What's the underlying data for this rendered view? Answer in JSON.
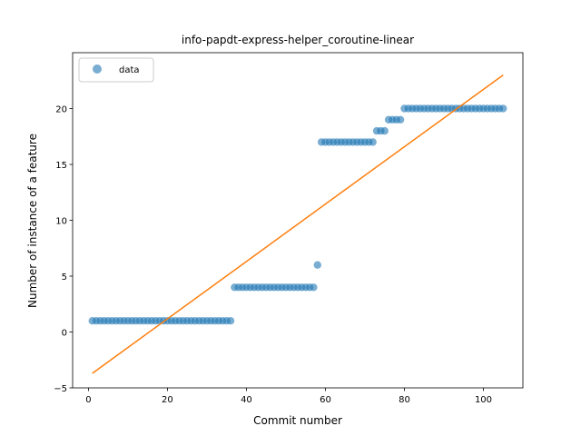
{
  "chart_data": {
    "type": "scatter",
    "title": "info-papdt-express-helper_coroutine-linear",
    "xlabel": "Commit number",
    "ylabel": "Number of instance of a feature",
    "xlim": [
      -4,
      110
    ],
    "ylim": [
      -5,
      25
    ],
    "xticks": [
      0,
      20,
      40,
      60,
      80,
      100
    ],
    "yticks": [
      -5,
      0,
      5,
      10,
      15,
      20
    ],
    "legend_position": "upper-left",
    "grid": false,
    "series": [
      {
        "name": "data",
        "kind": "points",
        "color": "#1f77b4",
        "x": [
          1,
          2,
          3,
          4,
          5,
          6,
          7,
          8,
          9,
          10,
          11,
          12,
          13,
          14,
          15,
          16,
          17,
          18,
          19,
          20,
          21,
          22,
          23,
          24,
          25,
          26,
          27,
          28,
          29,
          30,
          31,
          32,
          33,
          34,
          35,
          36,
          37,
          38,
          39,
          40,
          41,
          42,
          43,
          44,
          45,
          46,
          47,
          48,
          49,
          50,
          51,
          52,
          53,
          54,
          55,
          56,
          57,
          58,
          59,
          60,
          61,
          62,
          63,
          64,
          65,
          66,
          67,
          68,
          69,
          70,
          71,
          72,
          73,
          74,
          75,
          76,
          77,
          78,
          79,
          80,
          81,
          82,
          83,
          84,
          85,
          86,
          87,
          88,
          89,
          90,
          91,
          92,
          93,
          94,
          95,
          96,
          97,
          98,
          99,
          100,
          101,
          102,
          103,
          104,
          105
        ],
        "y": [
          1,
          1,
          1,
          1,
          1,
          1,
          1,
          1,
          1,
          1,
          1,
          1,
          1,
          1,
          1,
          1,
          1,
          1,
          1,
          1,
          1,
          1,
          1,
          1,
          1,
          1,
          1,
          1,
          1,
          1,
          1,
          1,
          1,
          1,
          1,
          1,
          4,
          4,
          4,
          4,
          4,
          4,
          4,
          4,
          4,
          4,
          4,
          4,
          4,
          4,
          4,
          4,
          4,
          4,
          4,
          4,
          4,
          6,
          17,
          17,
          17,
          17,
          17,
          17,
          17,
          17,
          17,
          17,
          17,
          17,
          17,
          17,
          18,
          18,
          18,
          19,
          19,
          19,
          19,
          20,
          20,
          20,
          20,
          20,
          20,
          20,
          20,
          20,
          20,
          20,
          20,
          20,
          20,
          20,
          20,
          20,
          20,
          20,
          20,
          20,
          20,
          20,
          20,
          20,
          20
        ]
      },
      {
        "kind": "line",
        "color": "#ff7f0e",
        "x": [
          1,
          105
        ],
        "y": [
          -3.7,
          23.0
        ]
      }
    ]
  }
}
